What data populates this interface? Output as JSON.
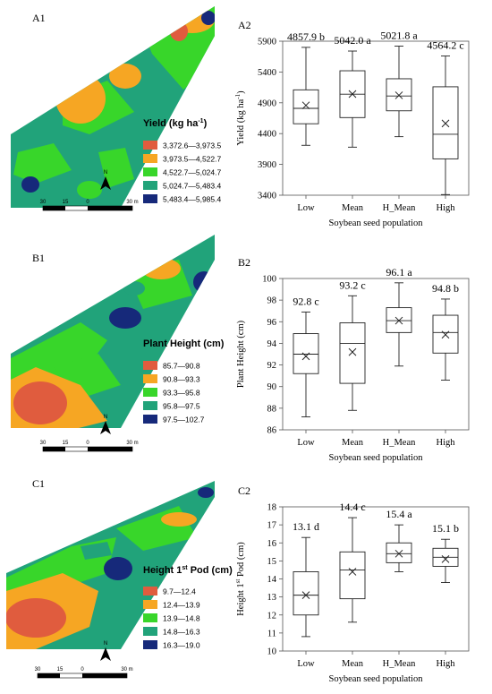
{
  "maps": [
    {
      "panel": "A1",
      "legend_title": "Yield (kg ha",
      "legend_title_sup": "-1",
      "legend_title_close": ")",
      "legend": [
        {
          "label": "3,372.6—3,973.5",
          "color": "#e05c3e"
        },
        {
          "label": "3,973.5—4,522.7",
          "color": "#f6a623"
        },
        {
          "label": "4,522.7—5,024.7",
          "color": "#38d62a"
        },
        {
          "label": "5,024.7—5,483.4",
          "color": "#21a37a"
        },
        {
          "label": "5,483.4—5,985.4",
          "color": "#16297a"
        }
      ],
      "scale": [
        "30",
        "15",
        "0",
        "30 m"
      ],
      "north": "N"
    },
    {
      "panel": "B1",
      "legend_title": "Plant Height (cm)",
      "legend_title_sup": "",
      "legend_title_close": "",
      "legend": [
        {
          "label": "85.7—90.8",
          "color": "#e05c3e"
        },
        {
          "label": "90.8—93.3",
          "color": "#f6a623"
        },
        {
          "label": "93.3—95.8",
          "color": "#38d62a"
        },
        {
          "label": "95.8—97.5",
          "color": "#21a37a"
        },
        {
          "label": "97.5—102.7",
          "color": "#16297a"
        }
      ],
      "scale": [
        "30",
        "15",
        "0",
        "30 m"
      ],
      "north": "N"
    },
    {
      "panel": "C1",
      "legend_title": "Height 1",
      "legend_title_sup": "st",
      "legend_title_close": " Pod (cm)",
      "legend": [
        {
          "label": "9.7—12.4",
          "color": "#e05c3e"
        },
        {
          "label": "12.4—13.9",
          "color": "#f6a623"
        },
        {
          "label": "13.9—14.8",
          "color": "#38d62a"
        },
        {
          "label": "14.8—16.3",
          "color": "#21a37a"
        },
        {
          "label": "16.3—19.0",
          "color": "#16297a"
        }
      ],
      "scale": [
        "30",
        "15",
        "0",
        "30 m"
      ],
      "north": "N"
    }
  ],
  "chart_data": [
    {
      "panel": "A2",
      "type": "box",
      "xlabel": "Soybean seed population",
      "ylabel": "Yield (kg ha",
      "ylabel_sup": "-1",
      "ylabel_close": ")",
      "ylim": [
        3400,
        5900
      ],
      "yticks": [
        "3400",
        "3900",
        "4400",
        "4900",
        "5400",
        "5900"
      ],
      "categories": [
        "Low",
        "Mean",
        "H_Mean",
        "High"
      ],
      "labels": [
        "4857.9 b",
        "5042.0 a",
        "5021.8 a",
        "4564.2 c"
      ],
      "boxes": [
        {
          "min": 4210,
          "q1": 4560,
          "median": 4810,
          "q3": 5110,
          "max": 5800,
          "mean": 4857.9
        },
        {
          "min": 4180,
          "q1": 4660,
          "median": 5040,
          "q3": 5420,
          "max": 5740,
          "mean": 5042.0
        },
        {
          "min": 4350,
          "q1": 4770,
          "median": 5010,
          "q3": 5290,
          "max": 5820,
          "mean": 5021.8
        },
        {
          "min": 3410,
          "q1": 3990,
          "median": 4390,
          "q3": 5160,
          "max": 5660,
          "mean": 4564.2
        }
      ]
    },
    {
      "panel": "B2",
      "type": "box",
      "xlabel": "Soybean seed population",
      "ylabel": "Plant Height (cm)",
      "ylabel_sup": "",
      "ylabel_close": "",
      "ylim": [
        86,
        100
      ],
      "yticks": [
        "86",
        "88",
        "90",
        "92",
        "94",
        "96",
        "98",
        "100"
      ],
      "categories": [
        "Low",
        "Mean",
        "H_Mean",
        "High"
      ],
      "labels": [
        "92.8 c",
        "93.2 c",
        "96.1 a",
        "94.8 b"
      ],
      "boxes": [
        {
          "min": 87.2,
          "q1": 91.2,
          "median": 93.0,
          "q3": 94.9,
          "max": 96.9,
          "mean": 92.8
        },
        {
          "min": 87.8,
          "q1": 90.3,
          "median": 94.0,
          "q3": 95.9,
          "max": 98.4,
          "mean": 93.2
        },
        {
          "min": 91.9,
          "q1": 95.0,
          "median": 96.1,
          "q3": 97.3,
          "max": 99.6,
          "mean": 96.1
        },
        {
          "min": 90.6,
          "q1": 93.1,
          "median": 95.0,
          "q3": 96.6,
          "max": 98.1,
          "mean": 94.8
        }
      ]
    },
    {
      "panel": "C2",
      "type": "box",
      "xlabel": "Soybean seed population",
      "ylabel": "Height 1",
      "ylabel_sup": "st",
      "ylabel_close": " Pod (cm)",
      "ylim": [
        10,
        18
      ],
      "yticks": [
        "10",
        "11",
        "12",
        "13",
        "14",
        "15",
        "16",
        "17",
        "18"
      ],
      "categories": [
        "Low",
        "Mean",
        "H_Mean",
        "High"
      ],
      "labels": [
        "13.1 d",
        "14.4 c",
        "15.4 a",
        "15.1 b"
      ],
      "boxes": [
        {
          "min": 10.8,
          "q1": 12.0,
          "median": 13.1,
          "q3": 14.4,
          "max": 16.3,
          "mean": 13.1
        },
        {
          "min": 11.6,
          "q1": 12.9,
          "median": 14.5,
          "q3": 15.5,
          "max": 17.4,
          "mean": 14.4
        },
        {
          "min": 14.4,
          "q1": 14.9,
          "median": 15.4,
          "q3": 16.0,
          "max": 17.0,
          "mean": 15.4
        },
        {
          "min": 13.8,
          "q1": 14.7,
          "median": 15.2,
          "q3": 15.7,
          "max": 16.2,
          "mean": 15.1
        }
      ]
    }
  ]
}
